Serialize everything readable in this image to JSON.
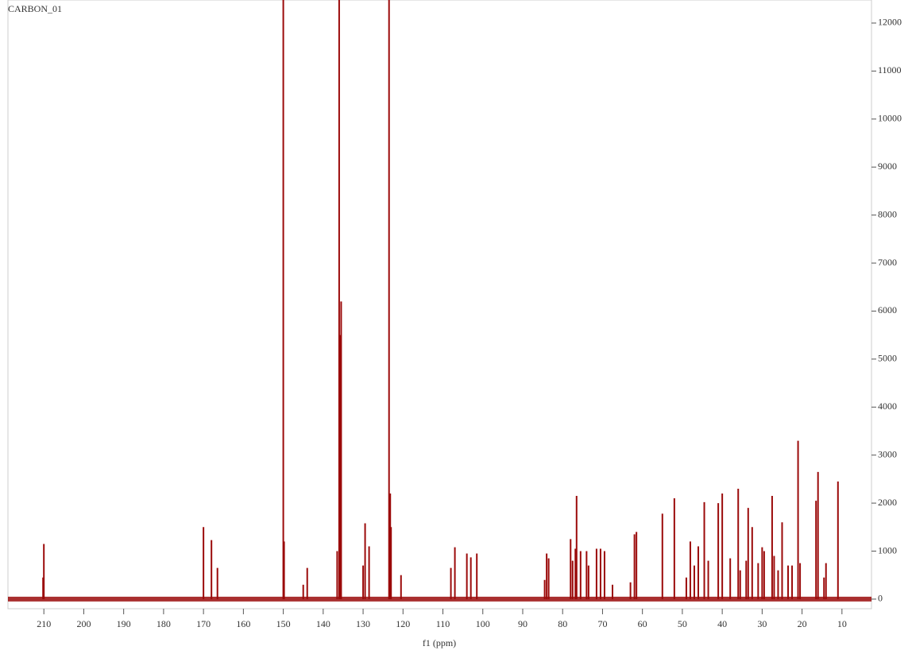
{
  "chart_data": {
    "type": "stick",
    "title": "CARBON_01",
    "x_label": "f1 (ppm)",
    "color": "#9b0a0a",
    "x": [
      210,
      210.2,
      170,
      168,
      166.5,
      150,
      149.8,
      145,
      144,
      136.5,
      136,
      135.8,
      135.5,
      130,
      129.5,
      128.5,
      123.5,
      123.2,
      123,
      120.5,
      108,
      107,
      104,
      103,
      101.5,
      84.5,
      84,
      83.5,
      78,
      77.5,
      76.8,
      76.5,
      75.5,
      74,
      73.5,
      71.5,
      70.5,
      69.5,
      67.5,
      63,
      62,
      61.5,
      55,
      52,
      49,
      48,
      47,
      46,
      44.5,
      43.5,
      41,
      40,
      38,
      36,
      35.5,
      34,
      33.5,
      32.5,
      31,
      30,
      29.5,
      27.5,
      27,
      26,
      25,
      23.5,
      22.5,
      21,
      20.5,
      16.5,
      16,
      14.5,
      14,
      11
    ],
    "values": [
      1150,
      450,
      1500,
      1230,
      650,
      20000,
      1200,
      300,
      650,
      1000,
      20000,
      5500,
      6200,
      700,
      1580,
      1100,
      20000,
      2200,
      1500,
      500,
      650,
      1080,
      950,
      870,
      950,
      400,
      950,
      850,
      1250,
      800,
      1050,
      2150,
      1000,
      1000,
      700,
      1050,
      1050,
      1000,
      300,
      350,
      1350,
      1400,
      1780,
      2100,
      450,
      1200,
      700,
      1100,
      2020,
      800,
      2000,
      2200,
      850,
      2300,
      600,
      800,
      1900,
      1500,
      750,
      1080,
      1000,
      2150,
      900,
      600,
      1600,
      700,
      700,
      3300,
      750,
      2050,
      2650,
      450,
      750,
      2450
    ],
    "xlim": [
      219,
      2.6
    ],
    "xticks": [
      210,
      200,
      190,
      180,
      170,
      160,
      150,
      140,
      130,
      120,
      110,
      100,
      90,
      80,
      70,
      60,
      50,
      40,
      30,
      20,
      10
    ],
    "ylim": [
      -200,
      12480
    ],
    "yticks": [
      0,
      1000,
      2000,
      3000,
      4000,
      5000,
      6000,
      7000,
      8000,
      9000,
      10000,
      11000,
      12000
    ]
  }
}
